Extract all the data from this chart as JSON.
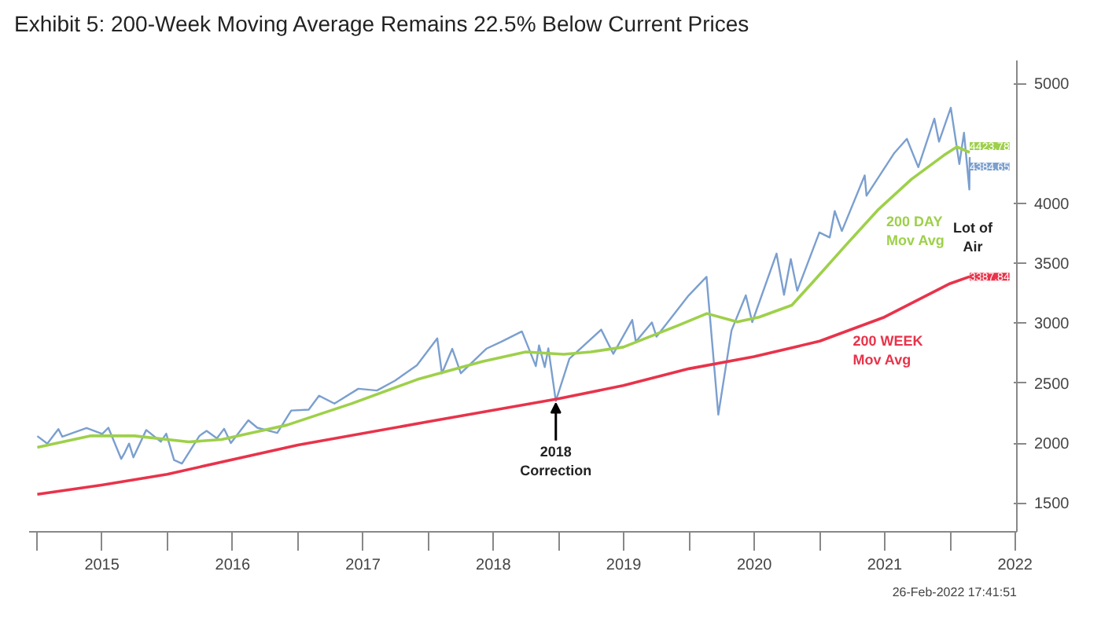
{
  "chart_data": {
    "type": "line",
    "title": "Exhibit 5:  200-Week Moving Average Remains 22.5% Below Current Prices",
    "xlim": [
      "2014-12-10",
      "2022-07-07"
    ],
    "ylim": [
      1260,
      5190
    ],
    "yticks": [
      1500,
      2000,
      2500,
      3000,
      3500,
      4000,
      5000
    ],
    "xticks": [
      {
        "value": "2015-01-01",
        "label": null
      },
      {
        "value": "2015-07-02",
        "label": "2015"
      },
      {
        "value": "2016-01-01",
        "label": null
      },
      {
        "value": "2016-07-02",
        "label": "2016"
      },
      {
        "value": "2017-01-01",
        "label": null
      },
      {
        "value": "2017-07-02",
        "label": "2017"
      },
      {
        "value": "2018-01-01",
        "label": null
      },
      {
        "value": "2018-07-02",
        "label": "2018"
      },
      {
        "value": "2019-01-01",
        "label": null
      },
      {
        "value": "2019-07-02",
        "label": "2019"
      },
      {
        "value": "2020-01-01",
        "label": null
      },
      {
        "value": "2020-07-02",
        "label": "2020"
      },
      {
        "value": "2021-01-01",
        "label": null
      },
      {
        "value": "2021-07-02",
        "label": "2021"
      },
      {
        "value": "2022-01-01",
        "label": null
      },
      {
        "value": "2022-07-02",
        "label": "2022"
      }
    ],
    "series": [
      {
        "color": "#7b9fcf",
        "x": [
          "2015-01-02",
          "2015-01-30",
          "2015-03-02",
          "2015-03-13",
          "2015-05-20",
          "2015-07-03",
          "2015-07-20",
          "2015-08-25",
          "2015-09-04",
          "2015-09-16",
          "2015-09-28",
          "2015-11-03",
          "2015-12-14",
          "2015-12-29",
          "2016-01-20",
          "2016-02-11",
          "2016-03-31",
          "2016-04-20",
          "2016-05-19",
          "2016-06-08",
          "2016-06-27",
          "2016-08-15",
          "2016-09-09",
          "2016-11-04",
          "2016-12-13",
          "2017-01-31",
          "2017-03-01",
          "2017-04-13",
          "2017-06-19",
          "2017-08-10",
          "2017-09-29",
          "2017-11-30",
          "2018-01-26",
          "2018-02-08",
          "2018-03-09",
          "2018-04-02",
          "2018-06-12",
          "2018-07-25",
          "2018-09-20",
          "2018-10-29",
          "2018-11-07",
          "2018-11-23",
          "2018-12-03",
          "2018-12-24",
          "2019-01-31",
          "2019-04-30",
          "2019-06-03",
          "2019-07-26",
          "2019-08-05",
          "2019-09-19",
          "2019-10-02",
          "2019-12-31",
          "2020-02-19",
          "2020-03-23",
          "2020-04-29",
          "2020-06-08",
          "2020-06-26",
          "2020-09-02",
          "2020-09-23",
          "2020-10-12",
          "2020-10-30",
          "2020-12-31",
          "2021-01-29",
          "2021-02-12",
          "2021-03-04",
          "2021-05-07",
          "2021-05-12",
          "2021-07-29",
          "2021-09-02",
          "2021-10-04",
          "2021-11-18",
          "2021-12-01",
          "2022-01-03",
          "2022-01-27",
          "2022-02-09",
          "2022-02-24",
          "2022-02-25"
        ],
        "values": [
          2058,
          1995,
          2117,
          2053,
          2126,
          2076,
          2128,
          1868,
          1921,
          1996,
          1881,
          2109,
          2012,
          2078,
          1859,
          1829,
          2060,
          2102,
          2040,
          2119,
          2000,
          2190,
          2128,
          2085,
          2271,
          2279,
          2395,
          2329,
          2453,
          2438,
          2519,
          2648,
          2873,
          2581,
          2786,
          2582,
          2786,
          2846,
          2931,
          2641,
          2814,
          2633,
          2790,
          2351,
          2704,
          2946,
          2744,
          3026,
          2845,
          3006,
          2887,
          3231,
          3386,
          2237,
          2939,
          3232,
          3009,
          3580,
          3237,
          3534,
          3270,
          3756,
          3714,
          3934,
          3768,
          4232,
          4063,
          4419,
          4537,
          4300,
          4705,
          4513,
          4796,
          4327,
          4587,
          4114,
          4384.65
        ],
        "value_labels": [
          null,
          null,
          null,
          null,
          null,
          null,
          null,
          null,
          null,
          null,
          null,
          null,
          null,
          null,
          null,
          null,
          null,
          null,
          null,
          null,
          null,
          null,
          null,
          null,
          null,
          null,
          null,
          null,
          null,
          null,
          null,
          null,
          null,
          null,
          null,
          null,
          null,
          null,
          null,
          null,
          null,
          null,
          null,
          null,
          null,
          null,
          null,
          null,
          null,
          null,
          null,
          null,
          null,
          null,
          null,
          null,
          null,
          null,
          null,
          null,
          null,
          null,
          null,
          null,
          null,
          null,
          null,
          null,
          null,
          null,
          null,
          null,
          null,
          null,
          null,
          null,
          "4384.65"
        ]
      },
      {
        "name": "200 DAY\nMov Avg",
        "color": "#9ed04a",
        "x": [
          "2015-01-02",
          "2015-06-01",
          "2015-10-01",
          "2016-03-01",
          "2016-06-01",
          "2016-09-01",
          "2016-12-01",
          "2017-06-01",
          "2017-12-01",
          "2018-06-01",
          "2018-10-01",
          "2019-01-15",
          "2019-04-01",
          "2019-07-01",
          "2019-12-01",
          "2020-02-20",
          "2020-05-15",
          "2020-07-15",
          "2020-10-15",
          "2020-12-15",
          "2021-03-15",
          "2021-06-15",
          "2021-09-15",
          "2021-12-15",
          "2022-01-20",
          "2022-02-25"
        ],
        "values": [
          1964,
          2060,
          2060,
          2010,
          2030,
          2090,
          2150,
          2330,
          2530,
          2680,
          2760,
          2740,
          2760,
          2800,
          2980,
          3080,
          3010,
          3050,
          3150,
          3350,
          3650,
          3950,
          4200,
          4400,
          4470,
          4423.78
        ],
        "value_labels": [
          null,
          null,
          null,
          null,
          null,
          null,
          null,
          null,
          null,
          null,
          null,
          null,
          null,
          null,
          null,
          null,
          null,
          null,
          null,
          null,
          null,
          null,
          null,
          null,
          null,
          "4423.78"
        ]
      },
      {
        "name": "200 WEEK\nMov Avg",
        "color": "#e8334a",
        "x": [
          "2015-01-02",
          "2015-07-01",
          "2016-01-01",
          "2017-01-01",
          "2018-01-01",
          "2019-01-01",
          "2019-07-01",
          "2020-01-01",
          "2020-07-01",
          "2021-01-01",
          "2021-07-01",
          "2022-01-01",
          "2022-02-25"
        ],
        "values": [
          1573,
          1650,
          1740,
          1984,
          2178,
          2370,
          2480,
          2620,
          2720,
          2850,
          3050,
          3330,
          3387.84
        ],
        "value_labels": [
          null,
          null,
          null,
          null,
          null,
          null,
          null,
          null,
          null,
          null,
          null,
          null,
          "3387.84"
        ]
      }
    ],
    "annotations": [
      "Lot of\nAir",
      {
        "text": "2018\nCorrection",
        "x": "2018-12-24",
        "y": 2351
      },
      "26-Feb-2022 17:41:51"
    ]
  }
}
